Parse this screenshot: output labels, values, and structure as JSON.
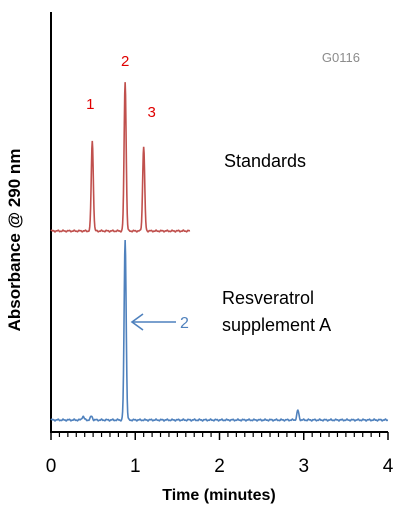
{
  "chart_data": {
    "type": "line",
    "code": "G0116",
    "ylabel": "Absorbance @ 290 nm",
    "xlabel": "Time (minutes)",
    "xlim": [
      0,
      4
    ],
    "x_ticks": [
      "0",
      "1",
      "2",
      "3",
      "4"
    ],
    "grid": false,
    "series": [
      {
        "name": "Standards",
        "color": "#c0504d",
        "x_range": [
          0.0,
          1.65
        ],
        "peaks": [
          {
            "label": "1",
            "time": 0.49,
            "height": 0.5
          },
          {
            "label": "2",
            "time": 0.88,
            "height": 0.83
          },
          {
            "label": "3",
            "time": 1.1,
            "height": 0.47
          }
        ]
      },
      {
        "name": "Resveratrol supplement A",
        "color": "#4f81bd",
        "x_range": [
          0.0,
          4.0
        ],
        "peaks": [
          {
            "label": "2",
            "time": 0.88,
            "height": 0.95
          },
          {
            "time": 0.38,
            "height": 0.02
          },
          {
            "time": 0.48,
            "height": 0.02
          },
          {
            "time": 2.93,
            "height": 0.05
          }
        ]
      }
    ],
    "annotations": {
      "standards_label": "Standards",
      "sample_label_line1": "Resveratrol",
      "sample_label_line2": "supplement A",
      "arrow_label": "2"
    }
  }
}
